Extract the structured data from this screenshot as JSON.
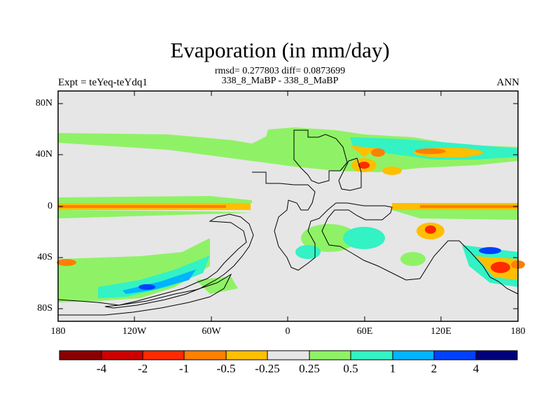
{
  "header": {
    "title": "Evaporation (in mm/day)",
    "stats_line1": "rmsd= 0.277803 diff= 0.0873699",
    "stats_line2": "338_8_MaBP - 338_8_MaBP",
    "experiment": "Expt = teYeq-teYdq1",
    "season": "ANN"
  },
  "map": {
    "projection": "cylindrical-equidistant",
    "lon_range": [
      -180,
      180
    ],
    "lat_range": [
      -90,
      90
    ],
    "lat_ticks": [
      "80N",
      "40N",
      "0",
      "40S",
      "80S"
    ],
    "lon_ticks": [
      "180",
      "120W",
      "60W",
      "0",
      "60E",
      "120E",
      "180"
    ],
    "background_color": "#e6e6e6"
  },
  "colorbar": {
    "labels": [
      "-4",
      "-2",
      "-1",
      "-0.5",
      "-0.25",
      "0.25",
      "0.5",
      "1",
      "2",
      "4"
    ],
    "colors": [
      "#8b0000",
      "#cd0000",
      "#ff2a00",
      "#ff7f00",
      "#ffbf00",
      "#e6e6e6",
      "#8ff266",
      "#33f2c4",
      "#00b4ff",
      "#0040ff",
      "#00007a"
    ]
  }
}
